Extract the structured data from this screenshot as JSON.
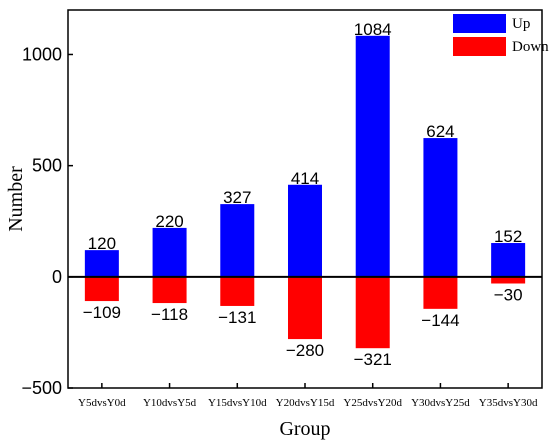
{
  "chart_data": {
    "type": "bar",
    "xlabel": "Group",
    "ylabel": "Number",
    "ylim": [
      -500,
      1200
    ],
    "yticks": [
      -500,
      0,
      500,
      1000
    ],
    "categories": [
      "Y5dvsY0d",
      "Y10dvsY5d",
      "Y15dvsY10d",
      "Y20dvsY15d",
      "Y25dvsY20d",
      "Y30dvsY25d",
      "Y35dvsY30d"
    ],
    "series": [
      {
        "name": "Up",
        "color": "#0000ff",
        "values": [
          120,
          220,
          327,
          414,
          1084,
          624,
          152
        ]
      },
      {
        "name": "Down",
        "color": "#ff0000",
        "values": [
          -109,
          -118,
          -131,
          -280,
          -321,
          -144,
          -30
        ]
      }
    ],
    "data_labels": {
      "up": [
        "120",
        "220",
        "327",
        "414",
        "1084",
        "624",
        "152"
      ],
      "down": [
        "−109",
        "−118",
        "−131",
        "−280",
        "−321",
        "−144",
        "−30"
      ]
    },
    "ytick_labels": [
      "−500",
      "0",
      "500",
      "1000"
    ],
    "legend": {
      "position": "top-right",
      "entries": [
        "Up",
        "Down"
      ]
    },
    "grid": false
  }
}
